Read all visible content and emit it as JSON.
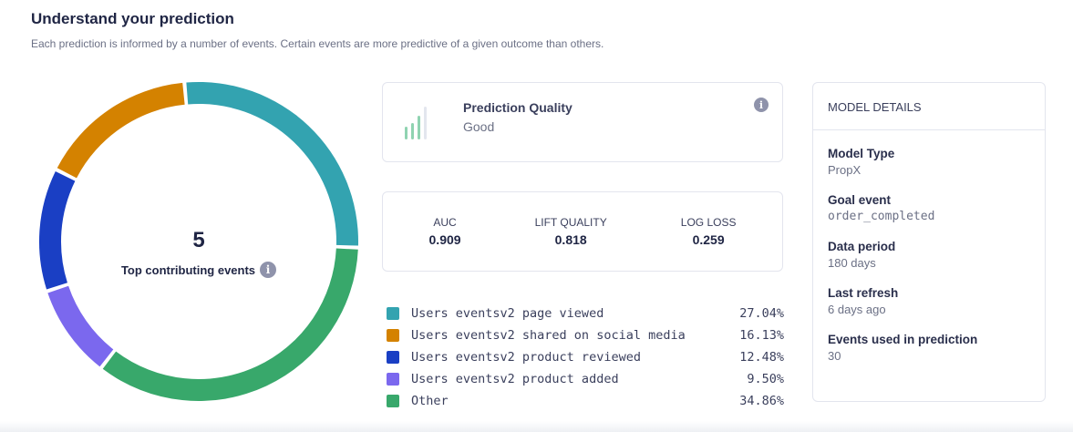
{
  "header": {
    "title": "Understand your prediction",
    "subtitle": "Each prediction is informed by a number of events. Certain events are more predictive of a given outcome than others."
  },
  "donut_center": {
    "value": "5",
    "label": "Top contributing events",
    "icon": "info-icon"
  },
  "prediction_quality": {
    "title": "Prediction Quality",
    "value": "Good",
    "level": 3,
    "level_max": 4,
    "icon": "signal-bars-icon"
  },
  "metrics": [
    {
      "label": "AUC",
      "value": "0.909"
    },
    {
      "label": "LIFT QUALITY",
      "value": "0.818"
    },
    {
      "label": "LOG LOSS",
      "value": "0.259"
    }
  ],
  "chart_data": {
    "type": "pie",
    "donut": true,
    "categories": [
      "Users eventsv2 page viewed",
      "Users eventsv2 shared on social media",
      "Users eventsv2 product reviewed",
      "Users eventsv2 product added",
      "Other"
    ],
    "values": [
      27.04,
      16.13,
      12.48,
      9.5,
      34.86
    ],
    "labels": [
      "27.04%",
      "16.13%",
      "12.48%",
      "9.50%",
      "34.86%"
    ],
    "colors": [
      "#33a3b0",
      "#d48200",
      "#1a3fc4",
      "#7b68ee",
      "#38a86b"
    ],
    "order_clockwise": [
      0,
      4,
      3,
      2,
      1
    ],
    "legend": "right"
  },
  "model_details": {
    "heading": "MODEL DETAILS",
    "items": [
      {
        "label": "Model Type",
        "value": "PropX"
      },
      {
        "label": "Goal event",
        "value": "order_completed",
        "mono": true
      },
      {
        "label": "Data period",
        "value": "180 days"
      },
      {
        "label": "Last refresh",
        "value": "6 days ago"
      },
      {
        "label": "Events used in prediction",
        "value": "30"
      }
    ]
  }
}
